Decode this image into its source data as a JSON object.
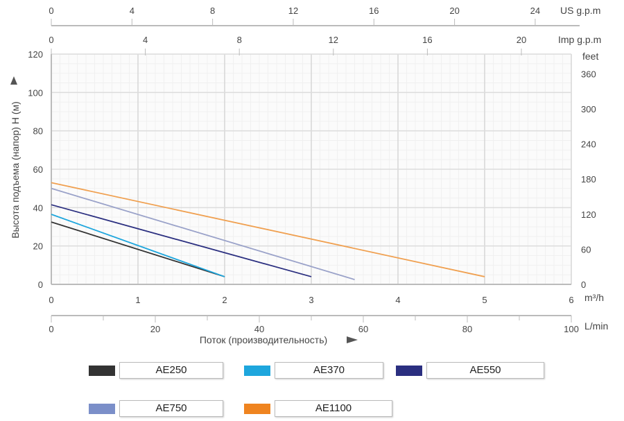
{
  "chart_data": {
    "type": "line",
    "ylabel": "Высота подъема (напор) H (м)",
    "xlabel": "Поток (производительность)",
    "x_unit": "m³/h",
    "xlim": [
      0,
      6
    ],
    "ylim": [
      0,
      120
    ],
    "x_ticks": [
      0,
      1,
      2,
      3,
      4,
      5,
      6
    ],
    "y_ticks": [
      0,
      20,
      40,
      60,
      80,
      100,
      120
    ],
    "grid": true,
    "secondary_axes": {
      "us_gpm": {
        "label": "US g.p.m",
        "ticks": [
          0,
          4,
          8,
          12,
          16,
          20,
          24
        ]
      },
      "imp_gpm": {
        "label": "Imp g.p.m",
        "ticks": [
          0,
          4,
          8,
          12,
          16,
          20
        ]
      },
      "feet": {
        "label": "feet",
        "ticks": [
          0,
          60,
          120,
          180,
          240,
          300,
          360
        ]
      },
      "lmin": {
        "label": "L/min",
        "ticks": [
          0,
          20,
          40,
          60,
          80,
          100
        ]
      }
    },
    "legend_position": "bottom",
    "series": [
      {
        "name": "AE250",
        "color": "#333333",
        "x": [
          0,
          2
        ],
        "y": [
          32.5,
          4
        ]
      },
      {
        "name": "AE370",
        "color": "#1ea6dd",
        "x": [
          0,
          2
        ],
        "y": [
          36.5,
          4
        ]
      },
      {
        "name": "AE550",
        "color": "#2b2f80",
        "x": [
          0,
          3
        ],
        "y": [
          41.5,
          4
        ]
      },
      {
        "name": "AE750",
        "color": "#9aa2c9",
        "legend_color": "#7b8fc9",
        "x": [
          0,
          3.5
        ],
        "y": [
          50,
          2.5
        ]
      },
      {
        "name": "AE1100",
        "color": "#f0a050",
        "legend_color": "#ef8420",
        "x": [
          0,
          5
        ],
        "y": [
          53,
          4
        ]
      }
    ]
  }
}
